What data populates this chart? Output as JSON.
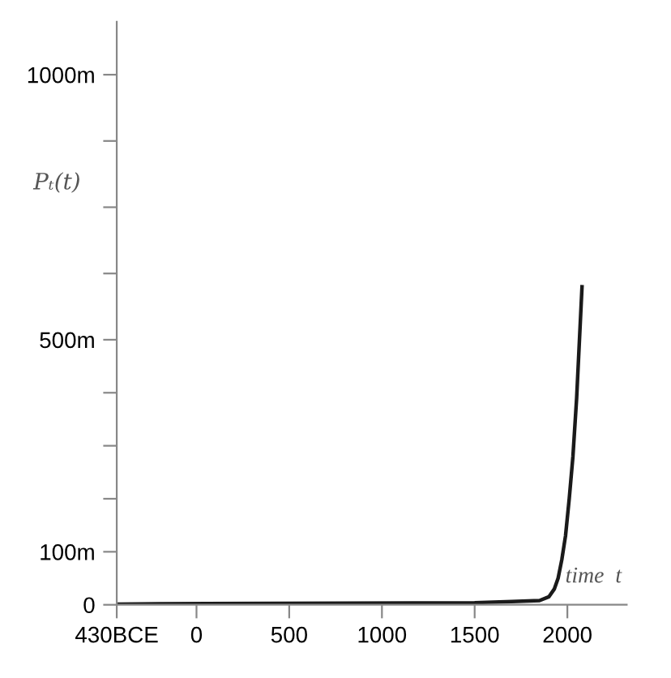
{
  "chart_data": {
    "type": "line",
    "ylabel": "Pₜ(t)",
    "xlabel": "time  t",
    "x": [
      -430,
      -200,
      1500,
      1700,
      1850,
      1900,
      1930,
      1950,
      1970,
      1990,
      2010,
      2030,
      2050,
      2079
    ],
    "series": [
      {
        "color": "#1a1a1a",
        "values": [
          1,
          2,
          4,
          6,
          8,
          15,
          30,
          50,
          85,
          130,
          200,
          280,
          390,
          600
        ]
      }
    ],
    "xlim": [
      -430,
      2320
    ],
    "xticks": [
      {
        "value": -430,
        "label": "430BCE"
      },
      0,
      500,
      1000,
      1500,
      2000
    ],
    "ylim": [
      0,
      1100
    ],
    "yticks": [
      0,
      {
        "value": 100,
        "label": "100m"
      },
      {
        "value": 200,
        "label": null
      },
      {
        "value": 300,
        "label": null
      },
      {
        "value": 400,
        "label": null
      },
      {
        "value": 500,
        "label": "500m"
      },
      {
        "value": 625,
        "label": null
      },
      {
        "value": 750,
        "label": null
      },
      {
        "value": 875,
        "label": null
      },
      {
        "value": 1000,
        "label": "1000m"
      }
    ],
    "grid": false,
    "legend": false,
    "marker": "none",
    "line_style": "solid"
  }
}
